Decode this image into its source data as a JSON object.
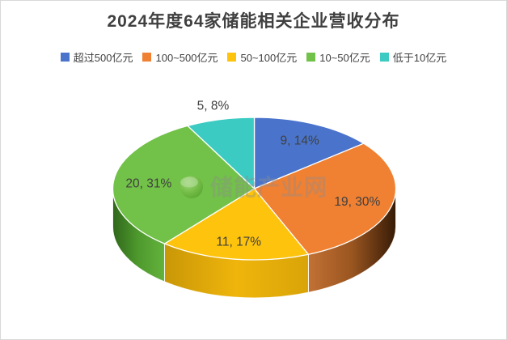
{
  "frame": {
    "background": "#FFFFFF",
    "border_color": "#D9D9D9"
  },
  "header": {
    "title": "2024年度64家储能相关企业营收分布",
    "title_color": "#404040"
  },
  "watermark": {
    "text": "储能产业网",
    "logo": "green-globe-icon",
    "text_color": "#8F8F8F"
  },
  "chart_data": {
    "type": "pie",
    "style": "3d",
    "title": "2024年度64家储能相关企业营收分布",
    "total_companies": 64,
    "unit": "家",
    "direction": "clockwise",
    "start_angle_deg": 0,
    "legend_position": "top",
    "legend_text_color": "#404040",
    "data_label_color": "#404040",
    "slices": [
      {
        "name": "超过500亿元",
        "value": 9,
        "percent": 14,
        "data_label": "9, 14%",
        "color": "#4A74CB",
        "side_colors": [
          "#30508F",
          "#30508F"
        ]
      },
      {
        "name": "100~500亿元",
        "value": 19,
        "percent": 30,
        "data_label": "19, 30%",
        "color": "#F08032",
        "side_colors": [
          "#C27134",
          "#9A5520",
          "#371B06"
        ]
      },
      {
        "name": "50~100亿元",
        "value": 11,
        "percent": 17,
        "data_label": "11, 17%",
        "color": "#FDC30D",
        "side_colors": [
          "#C99707",
          "#EFB50C",
          "#D9A408"
        ]
      },
      {
        "name": "10~50亿元",
        "value": 20,
        "percent": 31,
        "data_label": "20, 31%",
        "color": "#72C148",
        "side_colors": [
          "#2F671A",
          "#4F9A2E",
          "#63B23C"
        ]
      },
      {
        "name": "低于10亿元",
        "value": 5,
        "percent": 8,
        "data_label": "5, 8%",
        "color": "#3BCBC2",
        "side_colors": [
          "#28948D",
          "#28948D"
        ]
      }
    ]
  }
}
